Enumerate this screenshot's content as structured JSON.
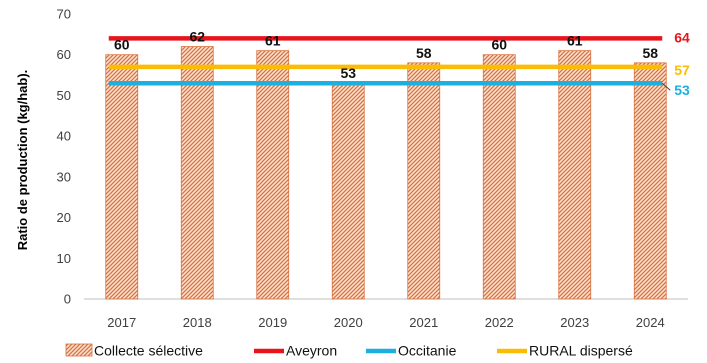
{
  "chart_data": {
    "type": "bar",
    "title": "",
    "xlabel": "",
    "ylabel": "Ratio de production (kg/hab).",
    "ylim": [
      0,
      70
    ],
    "yticks": [
      0,
      10,
      20,
      30,
      40,
      50,
      60,
      70
    ],
    "grid": false,
    "legend_position": "bottom",
    "categories": [
      "2017",
      "2018",
      "2019",
      "2020",
      "2021",
      "2022",
      "2023",
      "2024"
    ],
    "series": [
      {
        "name": "Collecte sélective",
        "kind": "bar",
        "values": [
          60,
          62,
          61,
          53,
          58,
          60,
          61,
          58
        ],
        "labels": [
          "60",
          "62",
          "61",
          "53",
          "58",
          "60",
          "61",
          "58"
        ],
        "color": "#e8956a",
        "pattern": "diagonal-hatch"
      }
    ],
    "reference_lines": [
      {
        "name": "Aveyron",
        "value": 64,
        "label": "64",
        "color": "#e8141c"
      },
      {
        "name": "Occitanie",
        "value": 53,
        "label": "53",
        "color": "#1bb0e0"
      },
      {
        "name": "RURAL dispersé",
        "value": 57,
        "label": "57",
        "color": "#fbbc05"
      }
    ]
  }
}
